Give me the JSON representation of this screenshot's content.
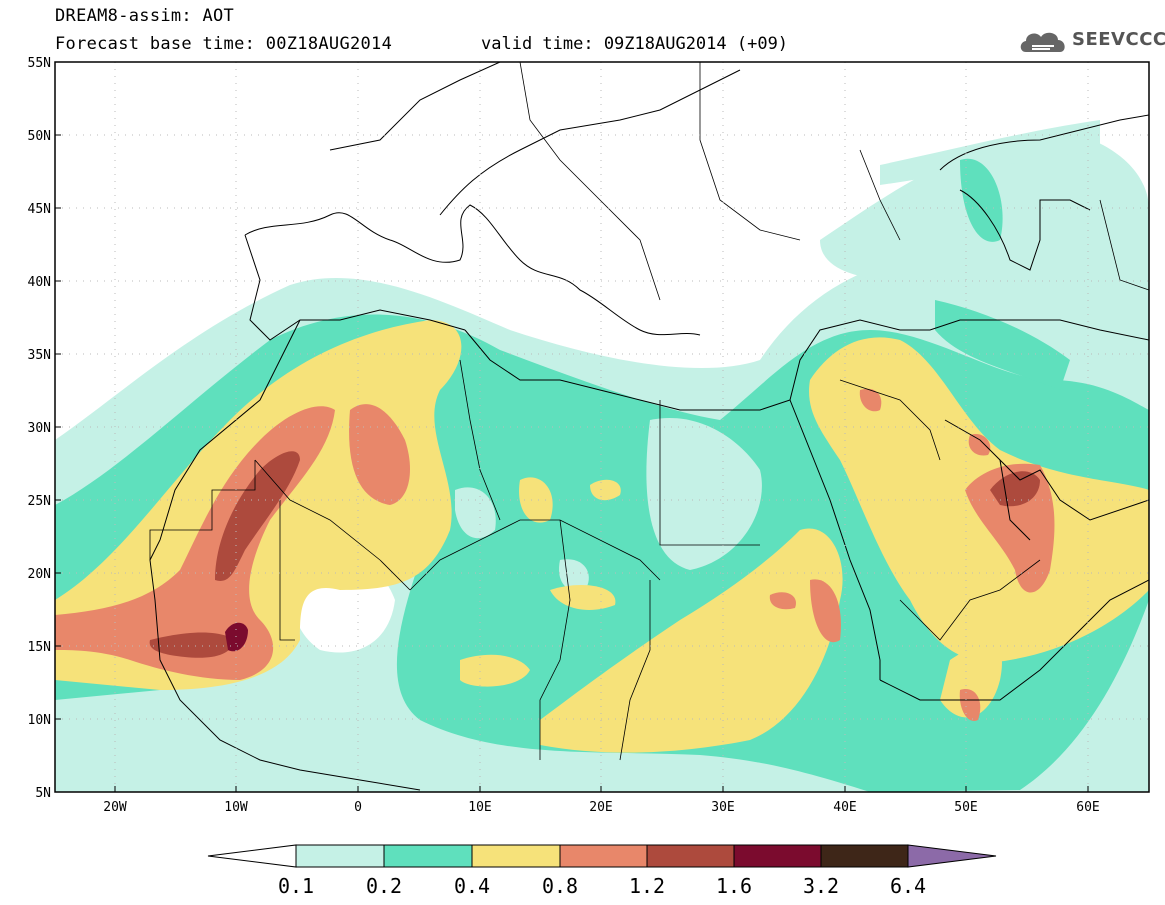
{
  "header": {
    "title": "DREAM8-assim: AOT",
    "base_time": "Forecast base time: 00Z18AUG2014",
    "valid_time": "valid time: 09Z18AUG2014 (+09)"
  },
  "logo": {
    "text": "SEEVCCC",
    "icon": "cloud-logo-icon"
  },
  "map": {
    "region": "Sahara, Mediterranean and Middle East",
    "lon_range": [
      -25,
      65
    ],
    "lat_range": [
      5,
      55
    ],
    "lat_ticks": [
      "55N",
      "50N",
      "45N",
      "40N",
      "35N",
      "30N",
      "25N",
      "20N",
      "15N",
      "10N",
      "5N"
    ],
    "lon_ticks": [
      "20W",
      "10W",
      "0",
      "10E",
      "20E",
      "30E",
      "40E",
      "50E",
      "60E"
    ]
  },
  "colorbar": {
    "labels": [
      "0.1",
      "0.2",
      "0.4",
      "0.8",
      "1.2",
      "1.6",
      "3.2",
      "6.4"
    ],
    "colors": [
      "#ffffff",
      "#c5f1e6",
      "#5fe0bd",
      "#f6e27a",
      "#e8876a",
      "#ad4a3d",
      "#7b0b2e",
      "#3e2618",
      "#8c6aa8"
    ]
  }
}
